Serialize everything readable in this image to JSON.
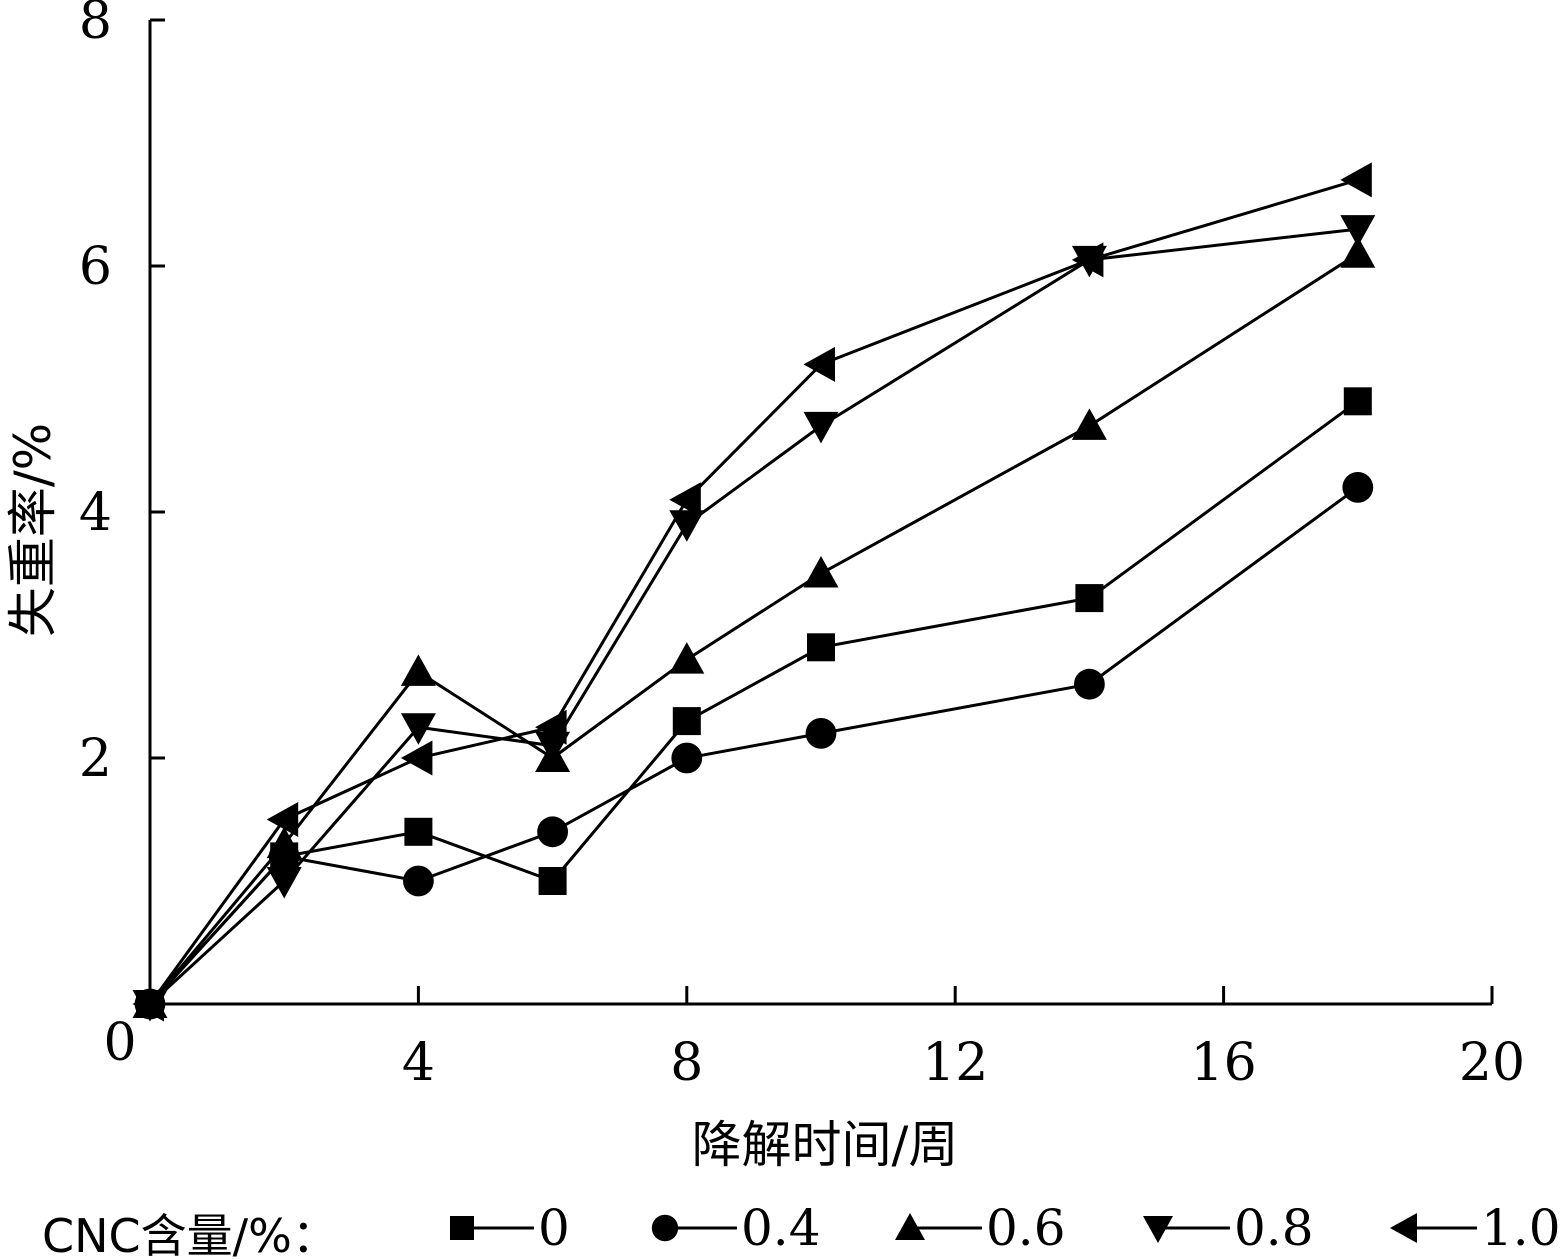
{
  "chart_data": {
    "type": "line",
    "xlabel": "降解时间/周",
    "ylabel": "失重率/%",
    "xlim": [
      0,
      20
    ],
    "ylim": [
      0,
      8
    ],
    "xticks": [
      4,
      8,
      12,
      16,
      20
    ],
    "yticks": [
      2,
      4,
      6,
      8
    ],
    "origin_label": "0",
    "grid": false,
    "legend_title": "CNC含量/%：",
    "legend_position": "bottom",
    "x": [
      0,
      2,
      4,
      6,
      8,
      10,
      14,
      18
    ],
    "series": [
      {
        "name": "0",
        "marker": "square",
        "values": [
          0,
          1.2,
          1.4,
          1.0,
          2.3,
          2.9,
          3.3,
          4.9
        ]
      },
      {
        "name": "0.4",
        "marker": "circle",
        "values": [
          0,
          1.2,
          1.0,
          1.4,
          2.0,
          2.2,
          2.6,
          4.2
        ]
      },
      {
        "name": "0.6",
        "marker": "triangle-up",
        "values": [
          0,
          1.3,
          2.7,
          2.0,
          2.8,
          3.5,
          4.7,
          6.1
        ]
      },
      {
        "name": "0.8",
        "marker": "triangle-down",
        "values": [
          0,
          1.0,
          2.25,
          2.1,
          3.9,
          4.7,
          6.05,
          6.3
        ]
      },
      {
        "name": "1.0",
        "marker": "triangle-left",
        "values": [
          0,
          1.5,
          2.0,
          2.25,
          4.1,
          5.2,
          6.05,
          6.7
        ]
      }
    ]
  }
}
